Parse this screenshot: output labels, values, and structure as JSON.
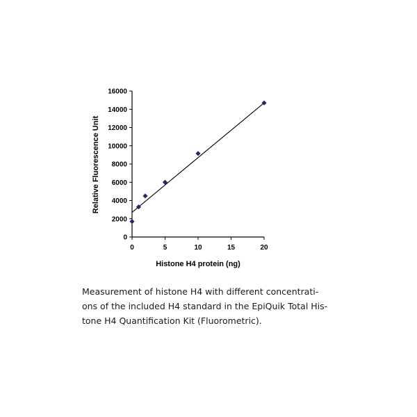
{
  "chart_data": {
    "type": "scatter",
    "xlabel": "Histone H4 protein (ng)",
    "ylabel": "Relative Fluorescence Unit",
    "xlim": [
      0,
      20
    ],
    "ylim": [
      0,
      16000
    ],
    "xticks": [
      0,
      5,
      10,
      15,
      20
    ],
    "yticks": [
      0,
      2000,
      4000,
      6000,
      8000,
      10000,
      12000,
      14000,
      16000
    ],
    "grid": false,
    "marker_color": "#1f2a6b",
    "series": [
      {
        "x": [
          0,
          1,
          2,
          5,
          10,
          20
        ],
        "y": [
          1700,
          3300,
          4500,
          6000,
          9150,
          14700
        ]
      }
    ],
    "trendline": {
      "type": "linear",
      "x": [
        0,
        20
      ],
      "y": [
        2700,
        14700
      ]
    }
  },
  "caption": {
    "lines": [
      "Measurement of histone H4 with different concentrati-",
      "ons of the included H4 standard in the  EpiQuik Total His-",
      "tone H4 Quantification Kit (Fluorometric)."
    ]
  }
}
